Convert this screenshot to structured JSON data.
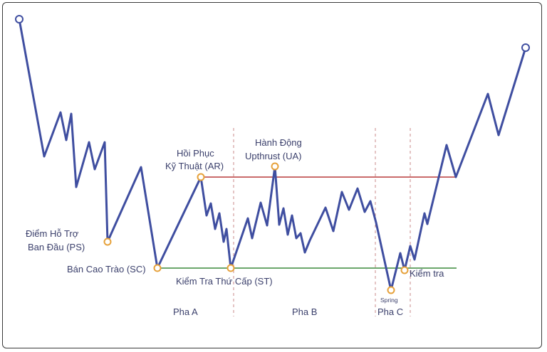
{
  "colors": {
    "price_line": "#3f4ea0",
    "resistance": "#b83a3a",
    "support": "#3c8a3c",
    "marker_fill": "#ffffff",
    "marker_orange": "#e6a13a",
    "marker_blue": "#3f4ea0",
    "divider": "#c98a8a",
    "text": "#3a3f6b"
  },
  "labels": {
    "ps_line1": "Điểm Hỗ Trợ",
    "ps_line2": "Ban Đầu (PS)",
    "sc": "Bán Cao Trào (SC)",
    "ar_line1": "Hồi Phục",
    "ar_line2": "Kỹ Thuật (AR)",
    "ua_line1": "Hành Động",
    "ua_line2": "Upthrust (UA)",
    "st": "Kiểm Tra Thứ Cấp (ST)",
    "spring": "Spring",
    "test": "Kiểm tra",
    "phase_a": "Pha A",
    "phase_b": "Pha B",
    "phase_c": "Pha C"
  }
}
